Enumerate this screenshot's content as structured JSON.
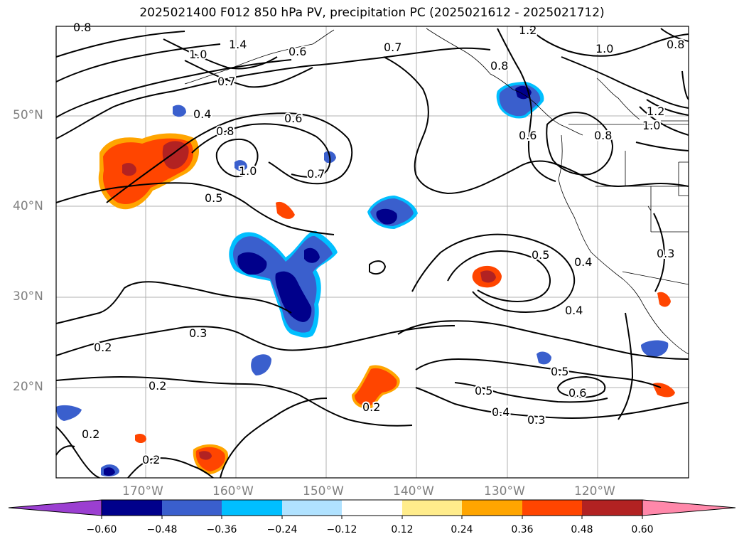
{
  "title": "2025021400 F012 850 hPa PV, precipitation PC (2025021612 - 2025021712)",
  "map": {
    "lat_labels": [
      "50°N",
      "40°N",
      "30°N",
      "20°N"
    ],
    "lon_labels": [
      "170°W",
      "160°W",
      "150°W",
      "140°W",
      "130°W",
      "120°W"
    ],
    "contour_labels": [
      "0.8",
      "1.0",
      "1.4",
      "0.6",
      "0.7",
      "0.4",
      "0.8",
      "0.6",
      "0.7",
      "1.0",
      "0.5",
      "1.2",
      "0.7",
      "0.8",
      "1.0",
      "0.8",
      "0.6",
      "0.8",
      "1.2",
      "1.0",
      "0.5",
      "0.4",
      "0.3",
      "0.4",
      "0.3",
      "0.2",
      "0.2",
      "0.2",
      "0.2",
      "0.2",
      "0.5",
      "0.5",
      "0.6",
      "0.4",
      "0.3"
    ]
  },
  "colorbar": {
    "ticks": [
      "−0.60",
      "−0.48",
      "−0.36",
      "−0.24",
      "−0.12",
      "0.12",
      "0.24",
      "0.36",
      "0.48",
      "0.60"
    ],
    "colors": [
      "#9b3fd1",
      "#00008b",
      "#3a5fcd",
      "#00bfff",
      "#b0e2ff",
      "#ffffff",
      "#ffec8b",
      "#ffa500",
      "#ff4500",
      "#b22222",
      "#ff88aa"
    ]
  }
}
